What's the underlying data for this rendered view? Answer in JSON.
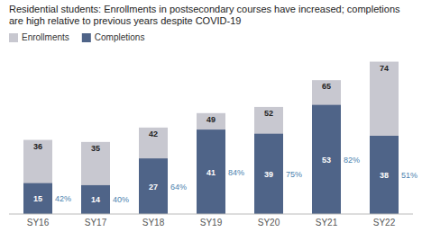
{
  "chart_data": {
    "type": "bar",
    "title": "Residential students: Enrollments in postsecondary courses have increased; completions are high relative to previous years despite COVID-19",
    "categories": [
      "SY16",
      "SY17",
      "SY18",
      "SY19",
      "SY20",
      "SY21",
      "SY22"
    ],
    "series": [
      {
        "name": "Enrollments",
        "color": "#c8c8d0",
        "values": [
          36,
          35,
          42,
          49,
          52,
          65,
          74
        ]
      },
      {
        "name": "Completions",
        "color": "#4f6488",
        "values": [
          15,
          14,
          27,
          41,
          39,
          53,
          38
        ]
      }
    ],
    "annotations": [
      "42%",
      "40%",
      "64%",
      "84%",
      "75%",
      "82%",
      "51%"
    ],
    "ylim": [
      0,
      79.92
    ],
    "stacked": false,
    "data_labels": true,
    "tick_labels": "x",
    "grid": false,
    "legend": "upper left"
  }
}
